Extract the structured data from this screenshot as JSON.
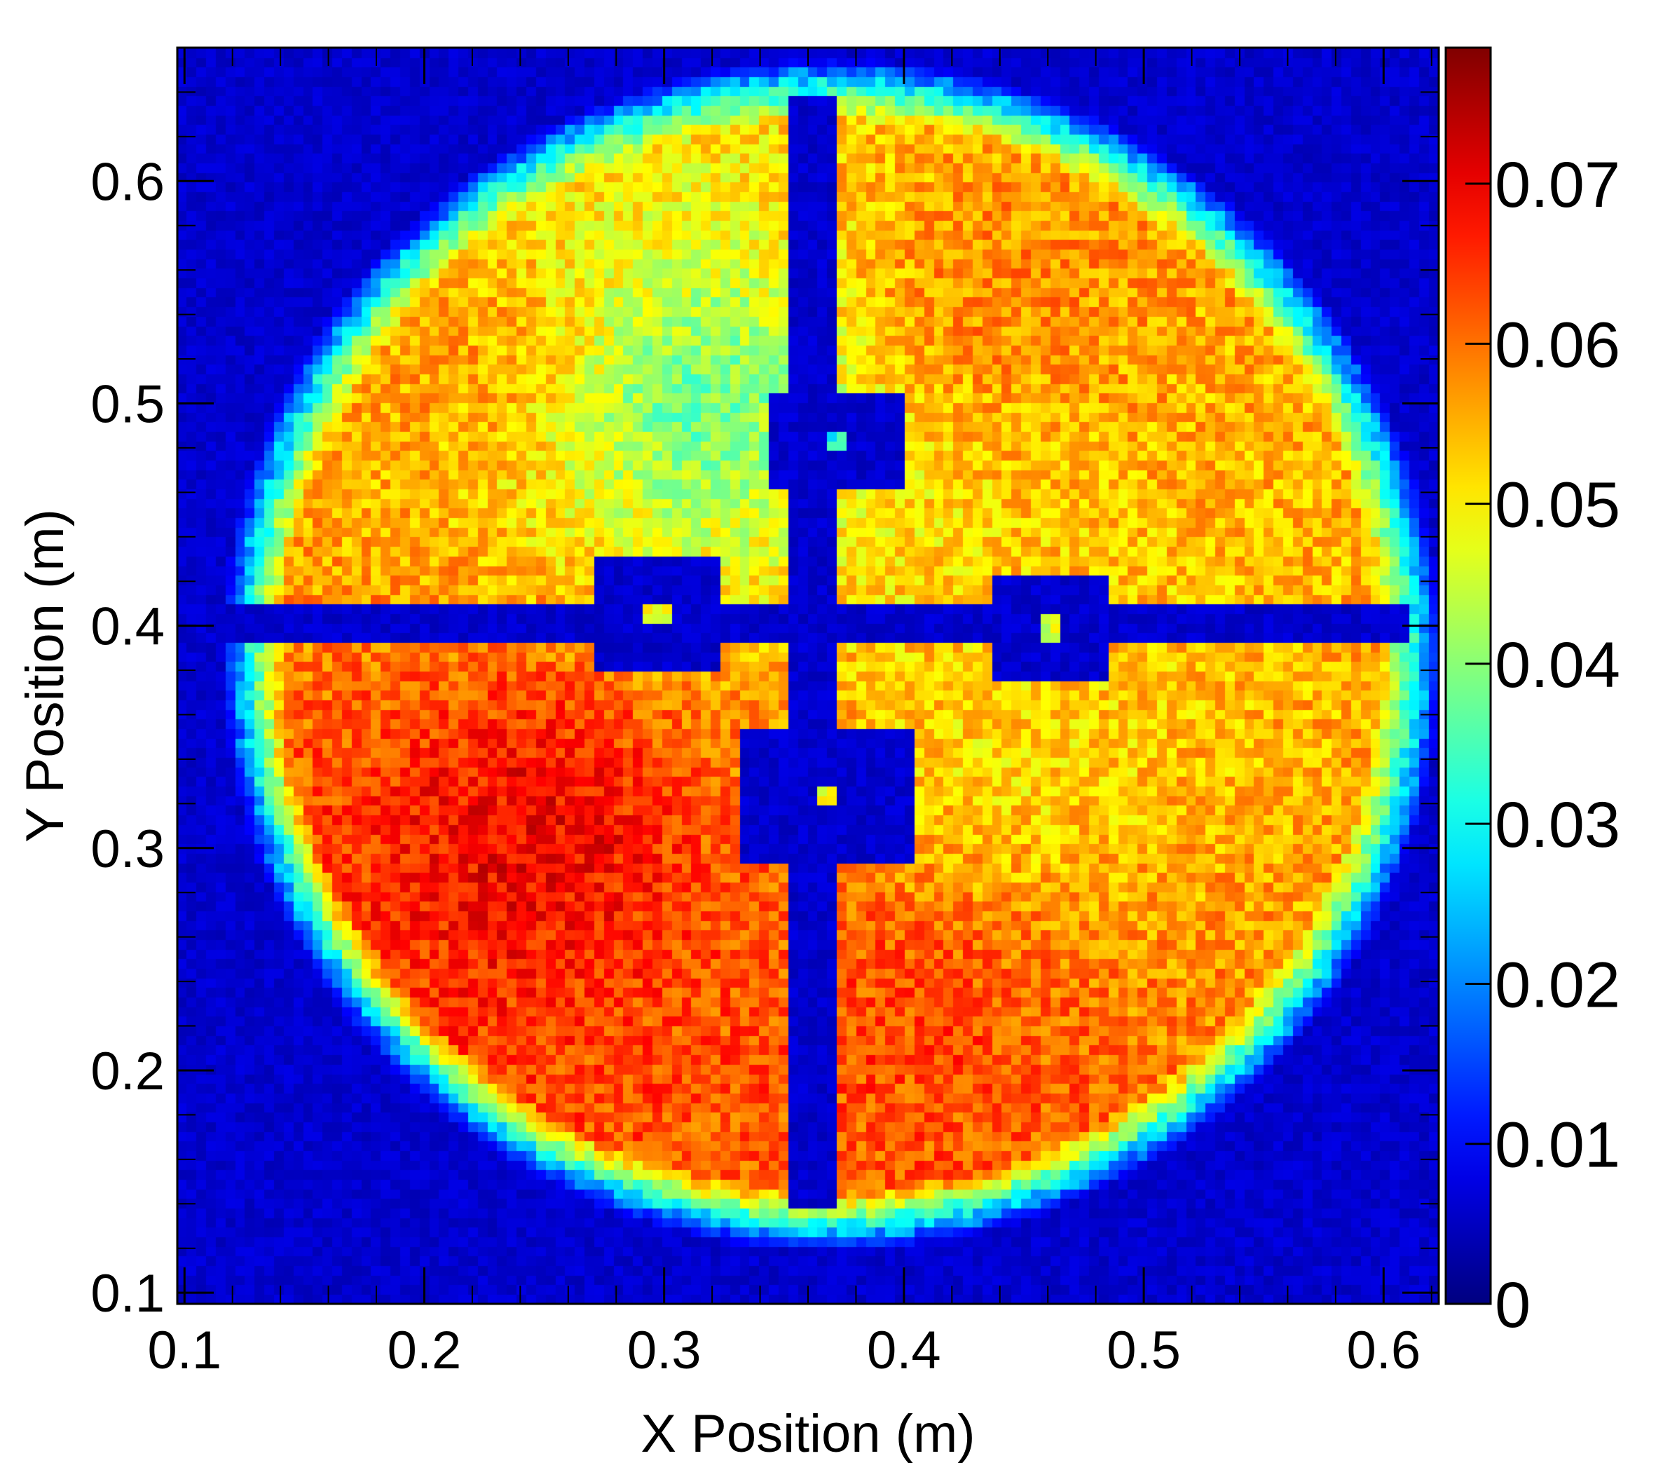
{
  "chart_data": {
    "type": "heatmap",
    "title": "",
    "xlabel": "X Position (m)",
    "ylabel": "Y Position (m)",
    "xlim": [
      0.097,
      0.623
    ],
    "ylim": [
      0.095,
      0.66
    ],
    "x_ticks": [
      "0.1",
      "0.2",
      "0.3",
      "0.4",
      "0.5",
      "0.6"
    ],
    "x_tick_values": [
      0.1,
      0.2,
      0.3,
      0.4,
      0.5,
      0.6
    ],
    "y_ticks": [
      "0.1",
      "0.2",
      "0.3",
      "0.4",
      "0.5",
      "0.6"
    ],
    "y_tick_values": [
      0.1,
      0.2,
      0.3,
      0.4,
      0.5,
      0.6
    ],
    "colorbar": {
      "range": [
        0,
        0.0785
      ],
      "colormap": "jet",
      "ticks": [
        "0",
        "0.01",
        "0.02",
        "0.03",
        "0.04",
        "0.05",
        "0.06",
        "0.07"
      ],
      "tick_values": [
        0,
        0.01,
        0.02,
        0.03,
        0.04,
        0.05,
        0.06,
        0.07
      ]
    },
    "grid": false,
    "background_value": 0.006,
    "disk": {
      "center": [
        0.37,
        0.387
      ],
      "radius_x": 0.245,
      "radius_y": 0.258,
      "edge_value": 0.027
    },
    "cross_bars": {
      "horizontal_y_center": 0.4,
      "vertical_x_center": 0.371,
      "gap_x": [
        0.353,
        0.373
      ],
      "gap_y": [
        0.391,
        0.41
      ],
      "value": 0.006
    },
    "detector_blocks": [
      {
        "x": [
          0.27,
          0.325
        ],
        "y": [
          0.378,
          0.43
        ],
        "center_value": 0.048
      },
      {
        "x": [
          0.435,
          0.485
        ],
        "y": [
          0.376,
          0.422
        ],
        "center_value": 0.045
      },
      {
        "x": [
          0.345,
          0.4
        ],
        "y": [
          0.461,
          0.505
        ],
        "center_value": 0.031
      },
      {
        "x": [
          0.332,
          0.405
        ],
        "y": [
          0.295,
          0.355
        ],
        "center_value": 0.05
      }
    ],
    "intensity_regions": [
      {
        "label": "upper-left",
        "x": 0.22,
        "y": 0.52,
        "value": 0.058
      },
      {
        "label": "upper-right",
        "x": 0.43,
        "y": 0.55,
        "value": 0.06
      },
      {
        "label": "lower-left",
        "x": 0.25,
        "y": 0.31,
        "value": 0.072
      },
      {
        "label": "lower-right",
        "x": 0.41,
        "y": 0.23,
        "value": 0.065
      },
      {
        "label": "inner-left-upper",
        "x": 0.315,
        "y": 0.5,
        "value": 0.032
      },
      {
        "label": "inner-right-lower",
        "x": 0.44,
        "y": 0.33,
        "value": 0.05
      }
    ]
  },
  "colors": {
    "frame": "#000000",
    "background": "#ffffff"
  }
}
